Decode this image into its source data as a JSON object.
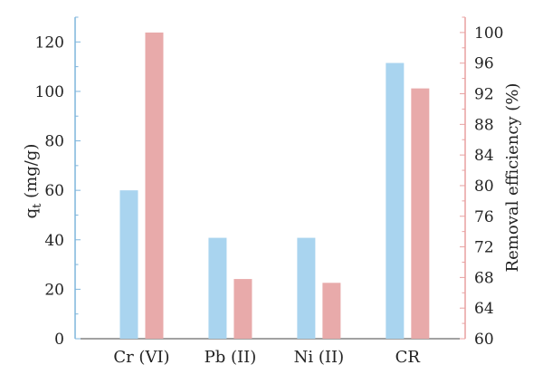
{
  "chart_data": {
    "type": "bar",
    "categories": [
      "Cr (VI)",
      "Pb (II)",
      "Ni (II)",
      "CR"
    ],
    "series": [
      {
        "axis": "left",
        "color": "#a9d4ef",
        "values": [
          60,
          40.8,
          40.8,
          111.5
        ]
      },
      {
        "axis": "right",
        "color": "#e8aaaa",
        "values": [
          100,
          67.8,
          67.3,
          92.7
        ]
      }
    ],
    "y_left": {
      "label_main": "q",
      "label_sub": "t",
      "label_unit": " (mg/g)",
      "lim": [
        0,
        130
      ],
      "ticks": [
        0,
        20,
        40,
        60,
        80,
        100,
        120
      ],
      "axis_color": "#7fb5dc"
    },
    "y_right": {
      "label": "Removal efficiency (%)",
      "lim": [
        60,
        102
      ],
      "ticks": [
        60,
        64,
        68,
        72,
        76,
        80,
        84,
        88,
        92,
        96,
        100
      ],
      "axis_color": "#e8a1a1"
    },
    "grid": false
  }
}
